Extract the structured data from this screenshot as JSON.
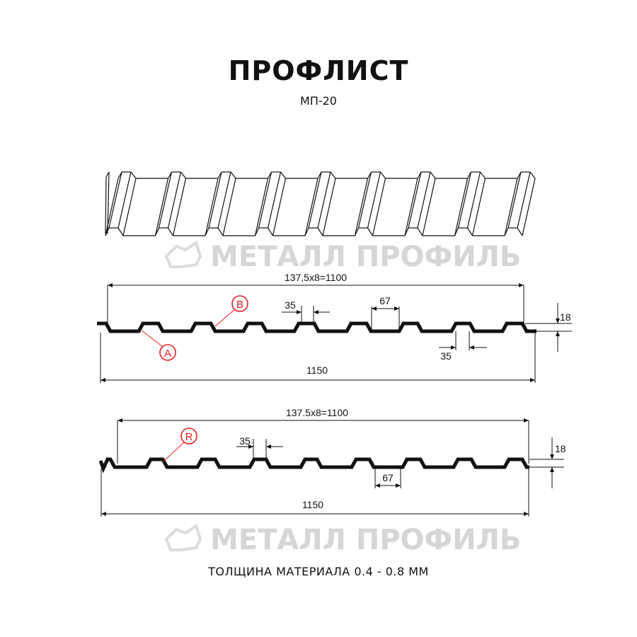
{
  "header": {
    "title": "ПРОФЛИСТ",
    "subtitle": "МП-20"
  },
  "watermark": {
    "text": "МЕТАЛЛ ПРОФИЛЬ",
    "color": "#d6d6d6"
  },
  "profile_a": {
    "overall_pitch": "137,5x8=1100",
    "overall_width": "1150",
    "rib_top": "35",
    "rib_bottom": "35",
    "valley": "67",
    "height": "18",
    "labels": [
      "A",
      "B"
    ]
  },
  "profile_b": {
    "overall_pitch": "137.5x8=1100",
    "overall_width": "1150",
    "rib_top": "35",
    "valley": "67",
    "height": "18",
    "labels": [
      "R"
    ]
  },
  "colors": {
    "line": "#111111",
    "callout": "#e41e1e"
  },
  "footer": {
    "thickness": "ТОЛЩИНА МАТЕРИАЛА 0.4 - 0.8 ММ"
  }
}
